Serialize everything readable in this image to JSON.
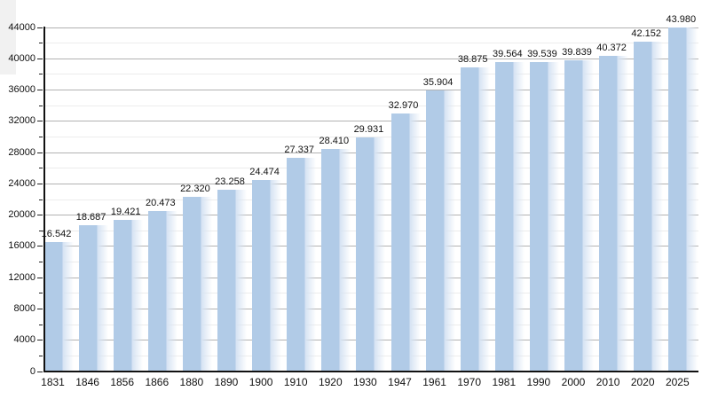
{
  "chart_data": {
    "type": "bar",
    "title": "",
    "xlabel": "",
    "ylabel": "",
    "categories": [
      "1831",
      "1846",
      "1856",
      "1866",
      "1880",
      "1890",
      "1900",
      "1910",
      "1920",
      "1930",
      "1947",
      "1961",
      "1970",
      "1981",
      "1990",
      "2000",
      "2010",
      "2020",
      "2025"
    ],
    "values": [
      16542,
      18687,
      19421,
      20473,
      22320,
      23258,
      24474,
      27337,
      28410,
      29931,
      32970,
      35904,
      38875,
      39564,
      39539,
      39839,
      40372,
      42152,
      43980
    ],
    "value_labels": [
      "16.542",
      "18.687",
      "19.421",
      "20.473",
      "22.320",
      "23.258",
      "24.474",
      "27.337",
      "28.410",
      "29.931",
      "32.970",
      "35.904",
      "38.875",
      "39.564",
      "39.539",
      "39.839",
      "40.372",
      "42.152",
      "43.980"
    ],
    "ylim": [
      0,
      44000
    ],
    "y_major_step": 4000,
    "y_minor_step": 2000,
    "y_tick_labels": [
      "0",
      "4000",
      "8000",
      "12000",
      "16000",
      "20000",
      "24000",
      "28000",
      "32000",
      "36000",
      "40000",
      "44000"
    ],
    "grid": true,
    "legend_position": "none",
    "colors": {
      "bar_fill": "#b1cbe7",
      "bar_fade": "#d6e3f3",
      "grid_major": "#b2b2b2",
      "grid_minor": "#ececec",
      "axis": "#111111",
      "text": "#111111",
      "background": "#ffffff"
    }
  }
}
